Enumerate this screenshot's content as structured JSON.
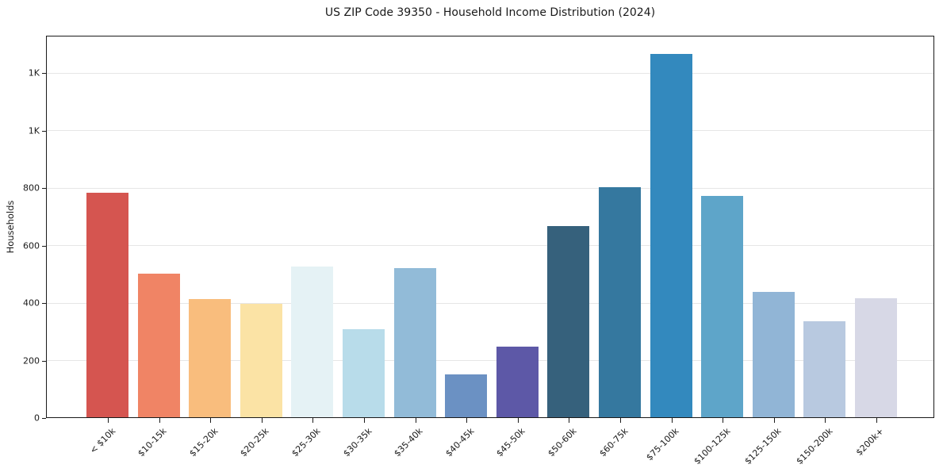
{
  "chart_data": {
    "type": "bar",
    "title": "US ZIP Code 39350 - Household Income Distribution (2024)",
    "xlabel": "",
    "ylabel": "Households",
    "categories": [
      "< $10k",
      "$10-15k",
      "$15-20k",
      "$20-25k",
      "$25-30k",
      "$30-35k",
      "$35-40k",
      "$40-45k",
      "$45-50k",
      "$50-60k",
      "$60-75k",
      "$75-100k",
      "$100-125k",
      "$125-150k",
      "$150-200k",
      "$200k+"
    ],
    "values": [
      780,
      500,
      410,
      395,
      525,
      305,
      520,
      150,
      245,
      665,
      800,
      1265,
      770,
      435,
      335,
      415
    ],
    "bar_colors": [
      "#d55550",
      "#f08465",
      "#f9bd7d",
      "#fbe3a5",
      "#e5f2f5",
      "#b8dcea",
      "#92bbd8",
      "#6b91c3",
      "#5d58a7",
      "#36617c",
      "#35789f",
      "#3389be",
      "#5ea5c9",
      "#91b5d6",
      "#b8c9e0",
      "#d7d8e6"
    ],
    "ylim": [
      0,
      1330
    ],
    "yticks": {
      "values": [
        0,
        200,
        400,
        600,
        800,
        1000,
        1200
      ],
      "labels": [
        "0",
        "200",
        "400",
        "600",
        "800",
        "1K",
        "1K"
      ]
    },
    "grid": "horizontal",
    "legend": "none",
    "background": "#ffffff",
    "x_tick_rotation_deg": 45
  }
}
